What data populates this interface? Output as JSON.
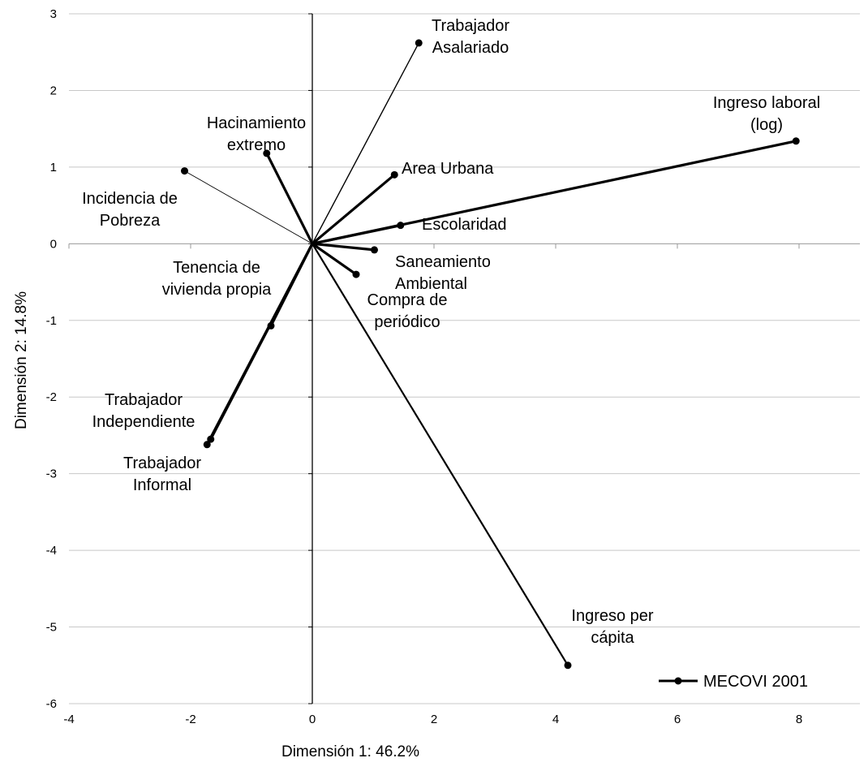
{
  "chart_data": {
    "type": "scatter",
    "style": "biplot-vectors",
    "xlabel": "Dimensión 1: 46.2%",
    "ylabel": "Dimensión 2: 14.8%",
    "xlim": [
      -4,
      9
    ],
    "ylim": [
      -6,
      3
    ],
    "xticks": [
      -4,
      -2,
      0,
      2,
      4,
      6,
      8
    ],
    "yticks": [
      -6,
      -5,
      -4,
      -3,
      -2,
      -1,
      0,
      1,
      2,
      3
    ],
    "xtick_labels": [
      "-4",
      "-2",
      "0",
      "2",
      "4",
      "6",
      "8"
    ],
    "ytick_labels": [
      "-6",
      "-5",
      "-4",
      "-3",
      "-2",
      "-1",
      "0",
      "1",
      "2",
      "3"
    ],
    "grid": "horizontal",
    "legend": {
      "position": "bottom-right",
      "label": "MECOVI 2001"
    },
    "series": [
      {
        "name": "MECOVI 2001",
        "color": "#000000",
        "vectors": [
          {
            "label": [
              "Trabajador",
              "Asalariado"
            ],
            "x": 1.75,
            "y": 2.62,
            "weight": "thin"
          },
          {
            "label": [
              "Ingreso laboral",
              "(log)"
            ],
            "x": 7.95,
            "y": 1.34,
            "weight": "bold"
          },
          {
            "label": [
              "Hacinamiento",
              "extremo"
            ],
            "x": -0.75,
            "y": 1.18,
            "weight": "bold"
          },
          {
            "label": [
              "Area Urbana"
            ],
            "x": 1.35,
            "y": 0.9,
            "weight": "bold"
          },
          {
            "label": [
              "Incidencia de",
              "Pobreza"
            ],
            "x": -2.1,
            "y": 0.95,
            "weight": "hairline"
          },
          {
            "label": [
              "Escolaridad"
            ],
            "x": 1.45,
            "y": 0.24,
            "weight": "bold"
          },
          {
            "label": [
              "Saneamiento",
              "Ambiental"
            ],
            "x": 1.02,
            "y": -0.08,
            "weight": "bold"
          },
          {
            "label": [
              "Compra de",
              "periódico"
            ],
            "x": 0.72,
            "y": -0.4,
            "weight": "bold"
          },
          {
            "label": [
              "Tenencia de",
              "vivienda propia"
            ],
            "x": -0.68,
            "y": -1.07,
            "weight": "bold"
          },
          {
            "label": [
              "Trabajador",
              "Independiente"
            ],
            "x": -1.67,
            "y": -2.55,
            "weight": "bold"
          },
          {
            "label": [
              "Trabajador",
              "Informal"
            ],
            "x": -1.73,
            "y": -2.62,
            "weight": "bold"
          },
          {
            "label": [
              "Ingreso per",
              "cápita"
            ],
            "x": 4.2,
            "y": -5.5,
            "weight": "medium"
          }
        ]
      }
    ]
  }
}
